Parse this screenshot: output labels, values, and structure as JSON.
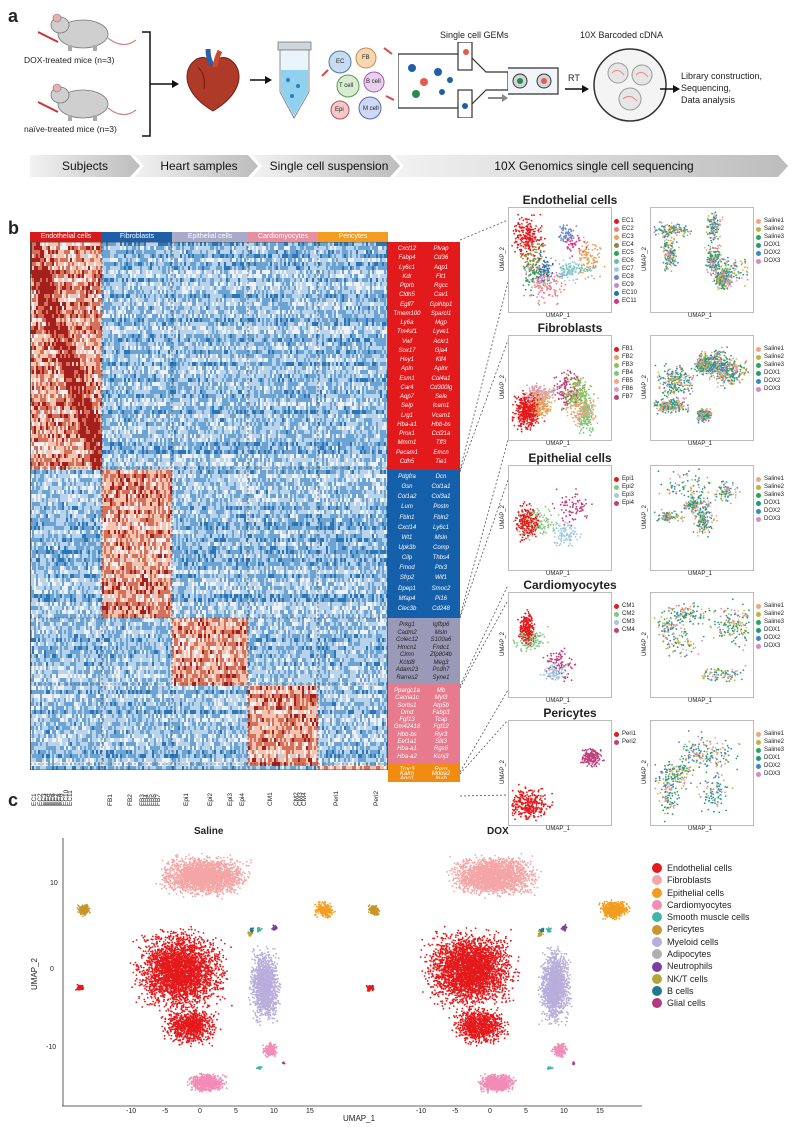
{
  "panel_labels": {
    "a": "a",
    "b": "b",
    "c": "c"
  },
  "panel_a": {
    "mice": [
      {
        "label": "DOX-treated mice (n=3)"
      },
      {
        "label": "naïve-treated mice (n=3)"
      }
    ],
    "tube_cells": [
      "EC",
      "FB",
      "T cell",
      "B cell",
      "Epi",
      "M cell"
    ],
    "gems_title": "Single cell GEMs",
    "cdna_title": "10X Barcoded cDNA",
    "rt_label": "RT",
    "library_steps": [
      "Library construction,",
      "Sequencing,",
      "Data analysis"
    ],
    "workflow": [
      "Subjects",
      "Heart samples",
      "Single cell suspension",
      "10X Genomics single cell sequencing"
    ]
  },
  "panel_b": {
    "heatmap_headers": [
      {
        "label": "Endothelial cells",
        "color": "#d7191c"
      },
      {
        "label": "Fibroblasts",
        "color": "#1f5fa8"
      },
      {
        "label": "Epithelial cells",
        "color": "#a9a9c9"
      },
      {
        "label": "Cardiomyocytes",
        "color": "#e78ea0"
      },
      {
        "label": "Pericytes",
        "color": "#f39c1f"
      }
    ],
    "gene_groups": [
      {
        "name": "Endothelial cells",
        "color": "#e31a1c",
        "genes": [
          "Cxcl12",
          "Plvap",
          "Fabp4",
          "Cd36",
          "Ly6c1",
          "Aqp1",
          "Kdr",
          "Flt1",
          "Ptprb",
          "Rgcc",
          "Cldn5",
          "Cav1",
          "Egfl7",
          "Gpihbp1",
          "Tmem100",
          "Sparcl1",
          "Ly6a",
          "Mgp",
          "Tm4sf1",
          "Lyve1",
          "Vwf",
          "Ackr1",
          "Sox17",
          "Gja4",
          "Hey1",
          "Klf4",
          "Apln",
          "Aplnr",
          "Esm1",
          "Col4a1",
          "Car4",
          "Cd300lg",
          "Aqp7",
          "Sele",
          "Selp",
          "Icam1",
          "Lrg1",
          "Vcam1",
          "Hba-a1",
          "Hbb-bs",
          "Prox1",
          "Ccl21a",
          "Mmrn1",
          "Tff3",
          "Pecam1",
          "Emcn",
          "Cdh5",
          "Tie1"
        ]
      },
      {
        "name": "Fibroblasts",
        "color": "#1560aa",
        "genes": [
          "Pdgfra",
          "Dcn",
          "Gsn",
          "Col1a1",
          "Col1a2",
          "Col3a1",
          "Lum",
          "Postn",
          "Fbln1",
          "Fbln2",
          "Cxcl14",
          "Ly6c1",
          "Wt1",
          "Msln",
          "Upk3b",
          "Comp",
          "Cilp",
          "Thbs4",
          "Fmod",
          "Ptx3",
          "Sfrp2",
          "Wif1",
          "Dpep1",
          "Smoc2",
          "Mfap4",
          "Pi16",
          "Clec3b",
          "Cd248"
        ]
      },
      {
        "name": "Epithelial cells",
        "color": "#9a9ab8",
        "genes": [
          "Prkg1",
          "Igfbp6",
          "Cadm2",
          "Msln",
          "Colec12",
          "S100a6",
          "Hmcn1",
          "Fndc1",
          "Clmn",
          "Zfp804b",
          "Kctd8",
          "Meg3",
          "Adam23",
          "Pcdh7",
          "Rarres2",
          "Syne1"
        ]
      },
      {
        "name": "Cardiomyocytes",
        "color": "#e77a8c",
        "genes": [
          "Ppargc1a",
          "Mb",
          "Cacna1c",
          "Myl3",
          "Sorbs1",
          "Atp5b",
          "Dmd",
          "Fabp3",
          "Fgf13",
          "Tcap",
          "Gm42418",
          "Fgf12",
          "Hbb-bs",
          "Ryr3",
          "Eef1a1",
          "Slit3",
          "Hba-a1",
          "Rgs6",
          "Hba-a2",
          "Kcnj3"
        ]
      },
      {
        "name": "Pericytes",
        "color": "#f08c12",
        "genes": [
          "Trpc3",
          "Rerg",
          "Kalrn",
          "Mdga2",
          "Ano1",
          "Inxb"
        ]
      }
    ],
    "x_ticks": [
      "EC1",
      "EC2",
      "EC3",
      "EC4",
      "EC5",
      "EC6",
      "EC7",
      "EC8",
      "EC9",
      "EC10",
      "EC11",
      "FB1",
      "FB2",
      "FB3",
      "FB4",
      "FB5",
      "FB6",
      "FB7",
      "Epi1",
      "Epi2",
      "Epi3",
      "Epi4",
      "CM1",
      "CM2",
      "CM3",
      "CM4",
      "Peri1",
      "Peri2"
    ],
    "umap_panels": [
      {
        "title": "Endothelial cells",
        "left_legend": [
          [
            "EC1",
            "#e31a1c"
          ],
          [
            "EC2",
            "#f08080"
          ],
          [
            "EC3",
            "#e6a15a"
          ],
          [
            "EC4",
            "#8a8a3a"
          ],
          [
            "EC5",
            "#2ca25f"
          ],
          [
            "EC6",
            "#66c2a4"
          ],
          [
            "EC7",
            "#9ecae1"
          ],
          [
            "EC8",
            "#6a8ac7"
          ],
          [
            "EC9",
            "#c08ec7"
          ],
          [
            "EC10",
            "#2171b5"
          ],
          [
            "EC11",
            "#d6338a"
          ]
        ],
        "right_legend": [
          [
            "Saline1",
            "#f4a582"
          ],
          [
            "Saline2",
            "#b8b83a"
          ],
          [
            "Saline3",
            "#2ca25f"
          ],
          [
            "DOX1",
            "#1b9e77"
          ],
          [
            "DOX2",
            "#3a87c8"
          ],
          [
            "DOX3",
            "#d988c8"
          ]
        ]
      },
      {
        "title": "Fibroblasts",
        "left_legend": [
          [
            "FB1",
            "#e31a1c"
          ],
          [
            "FB2",
            "#e6a15a"
          ],
          [
            "FB3",
            "#8fbf5a"
          ],
          [
            "FB4",
            "#7fc97f"
          ],
          [
            "FB5",
            "#f4a582"
          ],
          [
            "FB6",
            "#d9a0c8"
          ],
          [
            "FB7",
            "#c0407a"
          ]
        ],
        "right_legend": [
          [
            "Saline1",
            "#f4a582"
          ],
          [
            "Saline2",
            "#b8b83a"
          ],
          [
            "Saline3",
            "#2ca25f"
          ],
          [
            "DOX1",
            "#1b9e77"
          ],
          [
            "DOX2",
            "#3a87c8"
          ],
          [
            "DOX3",
            "#d988c8"
          ]
        ]
      },
      {
        "title": "Epithelial cells",
        "left_legend": [
          [
            "Epi1",
            "#e31a1c"
          ],
          [
            "Epi2",
            "#7fc97f"
          ],
          [
            "Epi3",
            "#9ecae1"
          ],
          [
            "Epi4",
            "#c0407a"
          ]
        ],
        "right_legend": [
          [
            "Saline1",
            "#f4a582"
          ],
          [
            "Saline2",
            "#b8b83a"
          ],
          [
            "Saline3",
            "#2ca25f"
          ],
          [
            "DOX1",
            "#1b9e77"
          ],
          [
            "DOX2",
            "#3a87c8"
          ],
          [
            "DOX3",
            "#d988c8"
          ]
        ]
      },
      {
        "title": "Cardiomyocytes",
        "left_legend": [
          [
            "CM1",
            "#e31a1c"
          ],
          [
            "CM2",
            "#7fc97f"
          ],
          [
            "CM3",
            "#9ecae1"
          ],
          [
            "CM4",
            "#c0407a"
          ]
        ],
        "right_legend": [
          [
            "Saline1",
            "#f4a582"
          ],
          [
            "Saline2",
            "#b8b83a"
          ],
          [
            "Saline3",
            "#2ca25f"
          ],
          [
            "DOX1",
            "#1b9e77"
          ],
          [
            "DOX2",
            "#3a87c8"
          ],
          [
            "DOX3",
            "#d988c8"
          ]
        ]
      },
      {
        "title": "Pericytes",
        "left_legend": [
          [
            "Peri1",
            "#e31a1c"
          ],
          [
            "Peri2",
            "#c0407a"
          ]
        ],
        "right_legend": [
          [
            "Saline1",
            "#f4a582"
          ],
          [
            "Saline2",
            "#b8b83a"
          ],
          [
            "Saline3",
            "#2ca25f"
          ],
          [
            "DOX1",
            "#1b9e77"
          ],
          [
            "DOX2",
            "#3a87c8"
          ],
          [
            "DOX3",
            "#d988c8"
          ]
        ]
      }
    ],
    "umap_x_label": "UMAP_1",
    "umap_y_label": "UMAP_2"
  },
  "panel_c": {
    "titles": [
      "Saline",
      "DOX"
    ],
    "x_label": "UMAP_1",
    "y_label": "UMAP_2",
    "x_ticks_left": [
      "-10",
      "-5",
      "0",
      "5",
      "10",
      "15"
    ],
    "x_ticks_right": [
      "-10",
      "-5",
      "0",
      "5",
      "10",
      "15"
    ],
    "y_ticks": [
      "10",
      "0",
      "-10"
    ],
    "legend": [
      [
        "Endothelial cells",
        "#e41a1c"
      ],
      [
        "Fibroblasts",
        "#f4a6a6"
      ],
      [
        "Epithelial cells",
        "#f39c1f"
      ],
      [
        "Cardiomyocytes",
        "#f28cb6"
      ],
      [
        "Smooth muscle cells",
        "#41b6a6"
      ],
      [
        "Pericytes",
        "#c8962a"
      ],
      [
        "Myeloid cells",
        "#b8aedc"
      ],
      [
        "Adipocytes",
        "#b0b0b0"
      ],
      [
        "Neutrophils",
        "#7b3fa0"
      ],
      [
        "NK/T cells",
        "#b8a53a"
      ],
      [
        "B cells",
        "#1f7a8c"
      ],
      [
        "Glial cells",
        "#b03a7a"
      ]
    ]
  }
}
